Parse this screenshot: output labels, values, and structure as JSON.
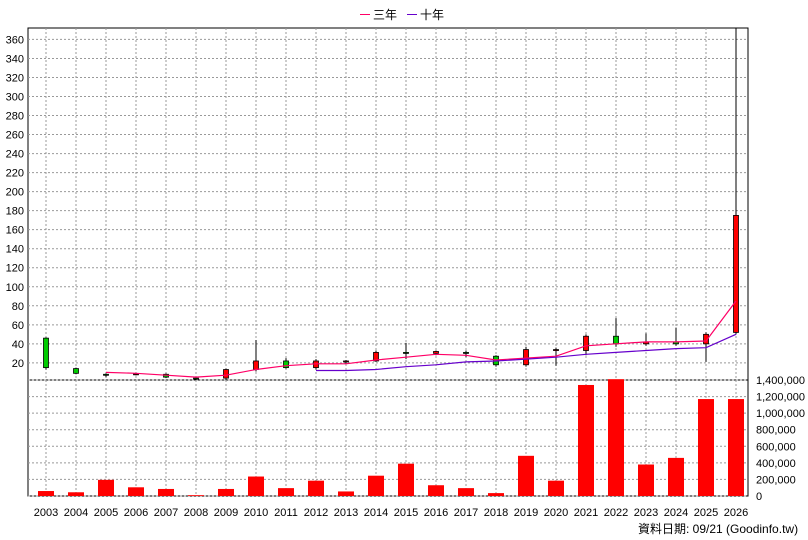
{
  "legend": {
    "three_year_label": "三年",
    "ten_year_label": "十年"
  },
  "footer": {
    "date_note": "資料日期: 09/21 (Goodinfo.tw)"
  },
  "colors": {
    "up": "#ff0000",
    "down": "#00cc00",
    "three_year_line": "#ff0066",
    "ten_year_line": "#6600cc",
    "volume": "#ff0000",
    "grid": "#999999"
  },
  "chart_data": [
    {
      "type": "candlestick",
      "title": "",
      "years": [
        "2003",
        "2004",
        "2005",
        "2006",
        "2007",
        "2008",
        "2009",
        "2010",
        "2011",
        "2012",
        "2013",
        "2014",
        "2015",
        "2016",
        "2017",
        "2018",
        "2019",
        "2020",
        "2021",
        "2022",
        "2023",
        "2024",
        "2025",
        "2026"
      ],
      "yticks": [
        20,
        40,
        60,
        80,
        100,
        120,
        140,
        160,
        180,
        200,
        220,
        240,
        260,
        280,
        300,
        320,
        340,
        360
      ],
      "ylim": [
        2,
        372
      ],
      "candles": [
        {
          "year": "2003",
          "open": 46,
          "close": 15,
          "high": 47,
          "low": 13
        },
        {
          "year": "2004",
          "open": 14,
          "close": 9,
          "high": 15,
          "low": 8
        },
        {
          "year": "2005",
          "open": 8,
          "close": 7,
          "high": 9,
          "low": 5
        },
        {
          "year": "2006",
          "open": 8,
          "close": 8.5,
          "high": 9,
          "low": 7
        },
        {
          "year": "2007",
          "open": 8,
          "close": 5,
          "high": 9,
          "low": 4
        },
        {
          "year": "2008",
          "open": 4,
          "close": 3.5,
          "high": 5,
          "low": 2
        },
        {
          "year": "2009",
          "open": 4,
          "close": 13,
          "high": 14,
          "low": 2
        },
        {
          "year": "2010",
          "open": 13,
          "close": 22,
          "high": 44,
          "low": 11
        },
        {
          "year": "2011",
          "open": 22,
          "close": 15,
          "high": 25,
          "low": 14
        },
        {
          "year": "2012",
          "open": 15,
          "close": 22,
          "high": 24,
          "low": 13
        },
        {
          "year": "2013",
          "open": 21,
          "close": 22,
          "high": 23,
          "low": 19
        },
        {
          "year": "2014",
          "open": 22,
          "close": 31,
          "high": 33,
          "low": 21
        },
        {
          "year": "2015",
          "open": 31,
          "close": 30,
          "high": 41,
          "low": 24
        },
        {
          "year": "2016",
          "open": 30,
          "close": 32,
          "high": 33,
          "low": 28
        },
        {
          "year": "2017",
          "open": 31,
          "close": 30,
          "high": 33,
          "low": 26
        },
        {
          "year": "2018",
          "open": 27,
          "close": 18,
          "high": 28,
          "low": 16
        },
        {
          "year": "2019",
          "open": 18,
          "close": 34,
          "high": 37,
          "low": 16
        },
        {
          "year": "2020",
          "open": 33,
          "close": 34,
          "high": 36,
          "low": 17
        },
        {
          "year": "2021",
          "open": 33,
          "close": 48,
          "high": 50,
          "low": 28
        },
        {
          "year": "2022",
          "open": 48,
          "close": 40,
          "high": 67,
          "low": 37
        },
        {
          "year": "2023",
          "open": 40,
          "close": 42,
          "high": 51,
          "low": 38
        },
        {
          "year": "2024",
          "open": 42,
          "close": 40,
          "high": 57,
          "low": 38
        },
        {
          "year": "2025",
          "open": 40,
          "close": 50,
          "high": 52,
          "low": 21
        },
        {
          "year": "2026",
          "open": 52,
          "close": 175,
          "high": 372,
          "low": 50
        }
      ],
      "series": [
        {
          "name": "三年",
          "values": [
            null,
            null,
            10,
            9,
            7,
            5,
            7,
            13,
            17,
            19,
            19,
            23,
            26,
            29,
            28,
            23,
            25,
            27,
            38,
            40,
            42,
            42,
            43,
            85
          ]
        },
        {
          "name": "十年",
          "values": [
            null,
            null,
            null,
            null,
            null,
            null,
            null,
            null,
            null,
            12,
            12,
            13,
            16,
            18,
            21,
            22,
            24,
            26,
            29,
            31,
            33,
            35,
            36,
            50
          ]
        }
      ]
    },
    {
      "type": "bar",
      "title": "",
      "categories": [
        "2003",
        "2004",
        "2005",
        "2006",
        "2007",
        "2008",
        "2009",
        "2010",
        "2011",
        "2012",
        "2013",
        "2014",
        "2015",
        "2016",
        "2017",
        "2018",
        "2019",
        "2020",
        "2021",
        "2022",
        "2023",
        "2024",
        "2025",
        "2026"
      ],
      "values": [
        60000,
        45000,
        195000,
        105000,
        85000,
        10000,
        85000,
        235000,
        95000,
        185000,
        55000,
        245000,
        390000,
        130000,
        95000,
        35000,
        485000,
        185000,
        1340000,
        1410000,
        380000,
        460000,
        1170000,
        1170000
      ],
      "yticks": [
        "0",
        "200,000",
        "400,000",
        "600,000",
        "800,000",
        "1,000,000",
        "1,200,000",
        "1,400,000"
      ],
      "ylim": [
        0,
        1400000
      ]
    }
  ]
}
